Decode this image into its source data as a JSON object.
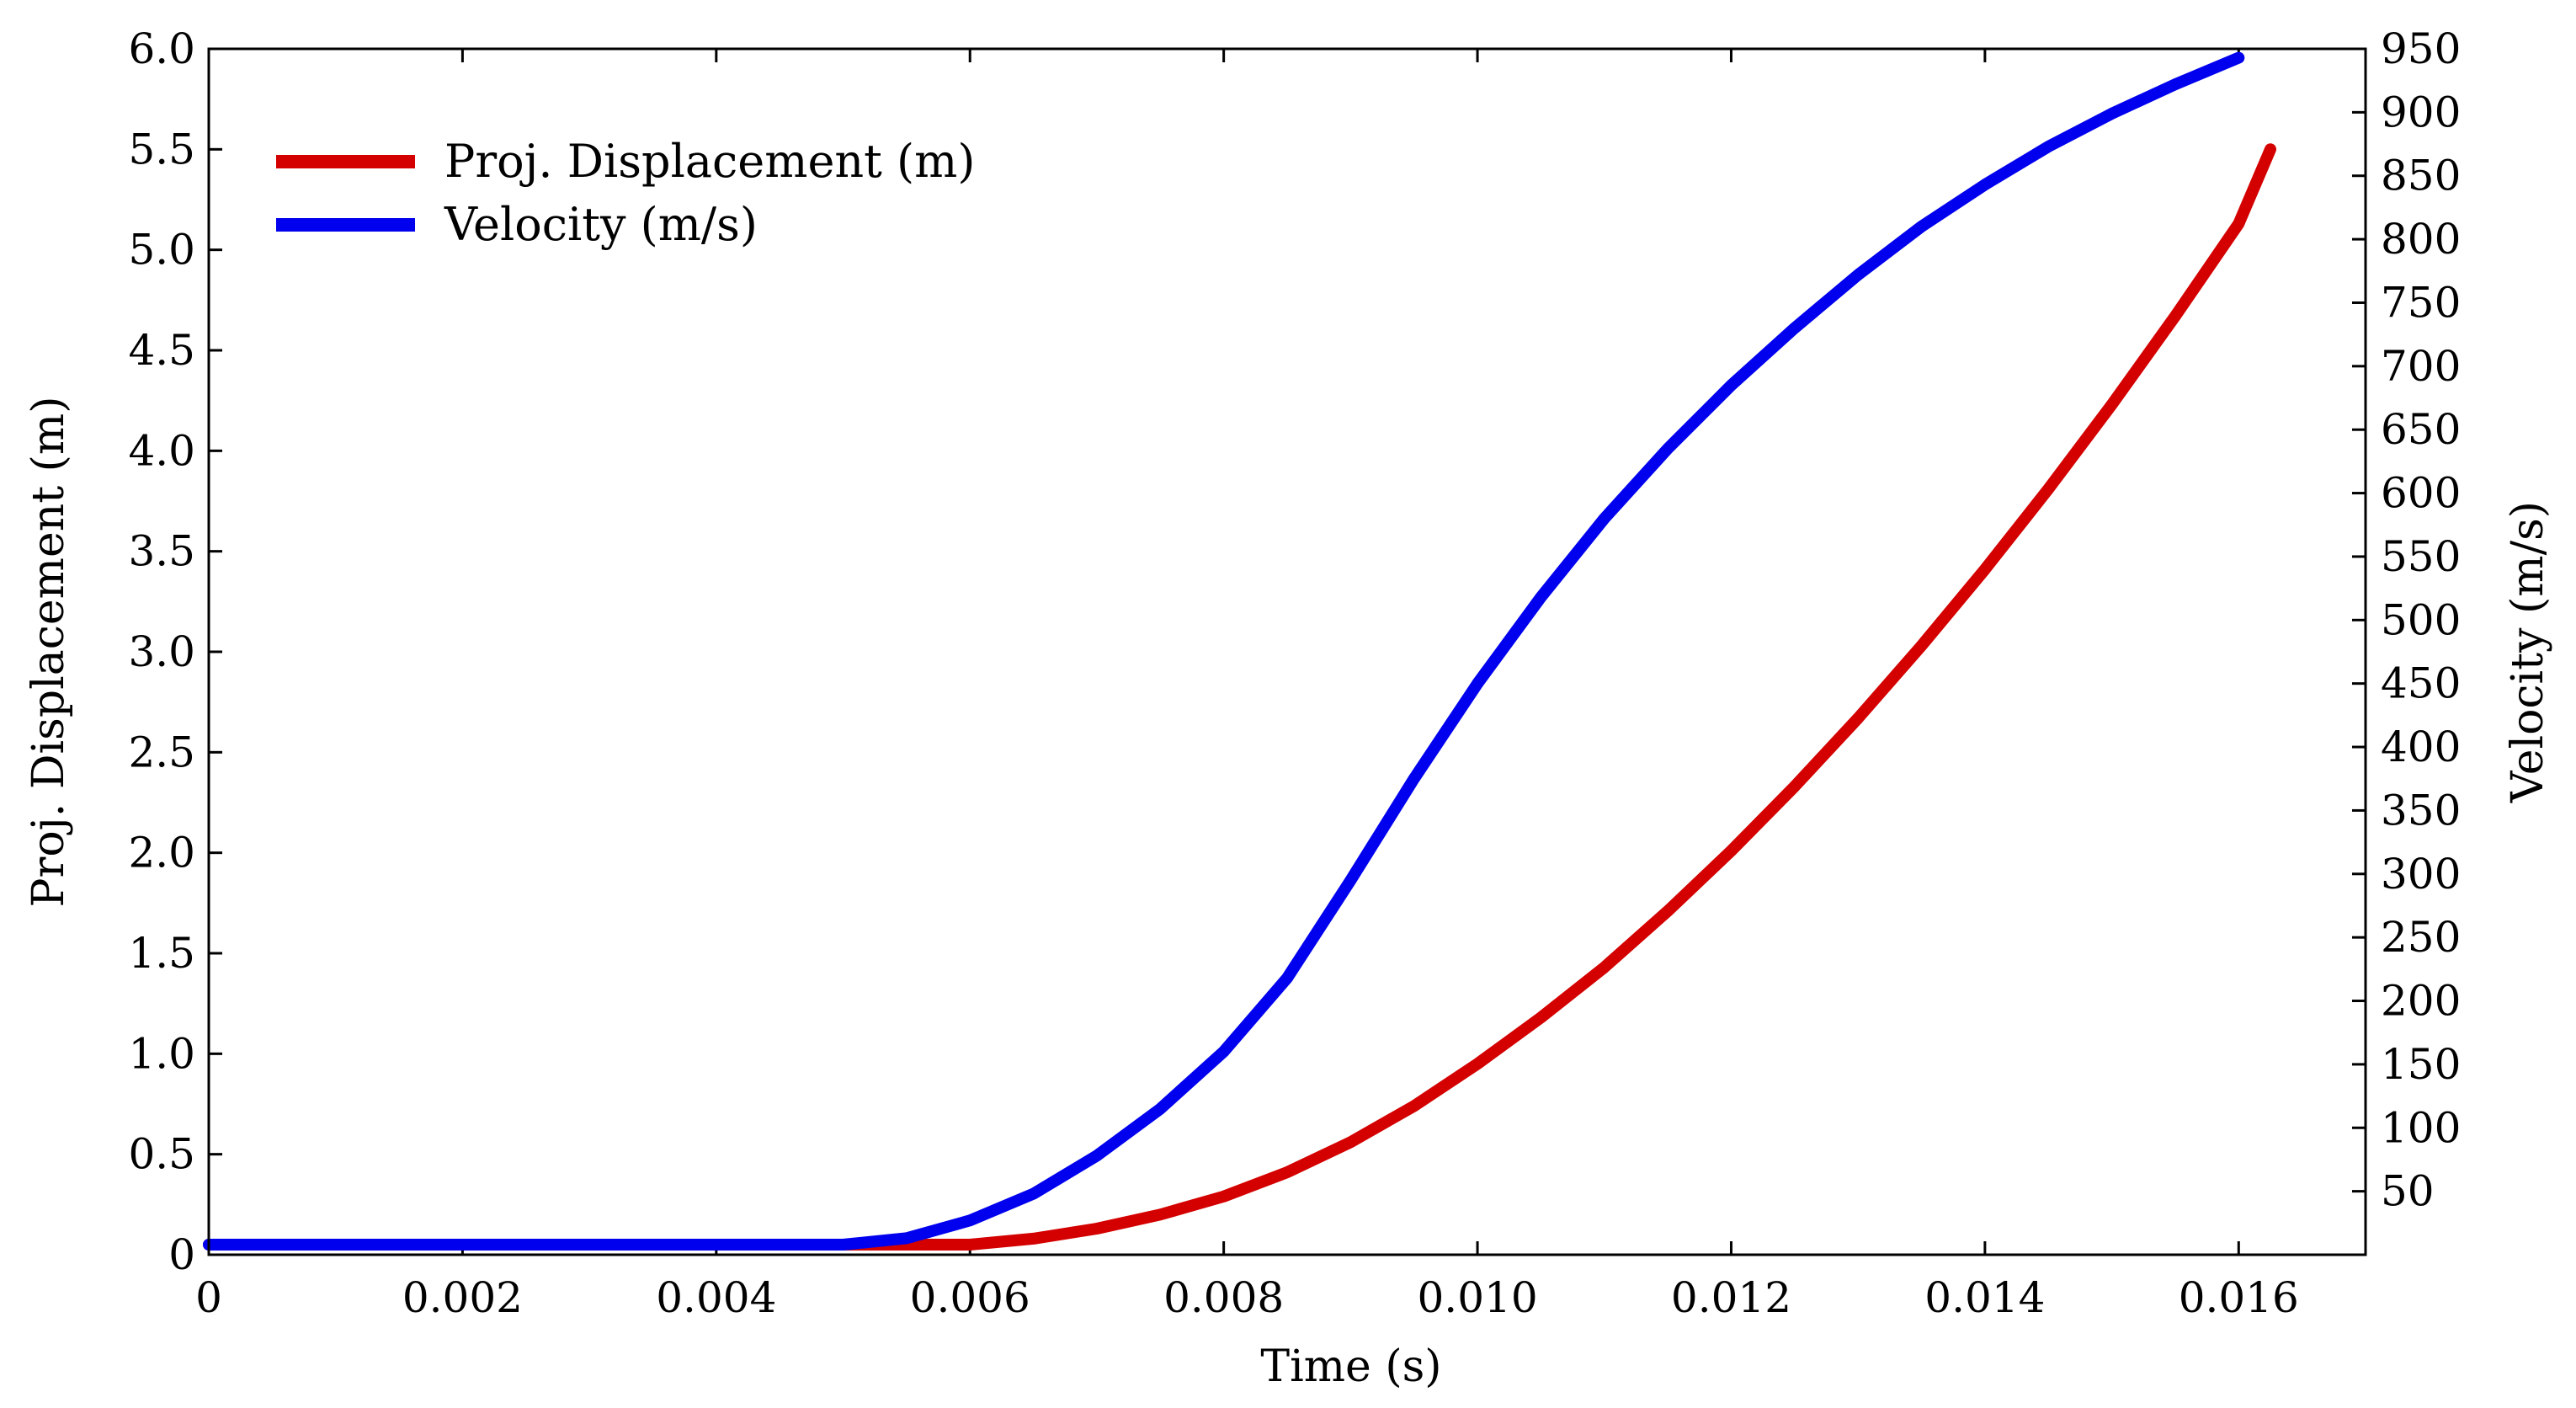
{
  "chart_data": {
    "type": "line",
    "title": "",
    "xlabel": "Time (s)",
    "ylabel_left": "Proj. Displacement (m)",
    "ylabel_right": "Velocity (m/s)",
    "xlim": [
      0,
      0.017
    ],
    "ylim_left": [
      0,
      6.0
    ],
    "ylim_right": [
      0,
      950
    ],
    "x_ticks": [
      {
        "value": 0,
        "label": "0"
      },
      {
        "value": 0.002,
        "label": "0.002"
      },
      {
        "value": 0.004,
        "label": "0.004"
      },
      {
        "value": 0.006,
        "label": "0.006"
      },
      {
        "value": 0.008,
        "label": "0.008"
      },
      {
        "value": 0.01,
        "label": "0.010"
      },
      {
        "value": 0.012,
        "label": "0.012"
      },
      {
        "value": 0.014,
        "label": "0.014"
      },
      {
        "value": 0.016,
        "label": "0.016"
      }
    ],
    "y_left_ticks": [
      {
        "value": 0,
        "label": "0"
      },
      {
        "value": 0.5,
        "label": "0.5"
      },
      {
        "value": 1.0,
        "label": "1.0"
      },
      {
        "value": 1.5,
        "label": "1.5"
      },
      {
        "value": 2.0,
        "label": "2.0"
      },
      {
        "value": 2.5,
        "label": "2.5"
      },
      {
        "value": 3.0,
        "label": "3.0"
      },
      {
        "value": 3.5,
        "label": "3.5"
      },
      {
        "value": 4.0,
        "label": "4.0"
      },
      {
        "value": 4.5,
        "label": "4.5"
      },
      {
        "value": 5.0,
        "label": "5.0"
      },
      {
        "value": 5.5,
        "label": "5.5"
      },
      {
        "value": 6.0,
        "label": "6.0"
      }
    ],
    "y_right_ticks": [
      {
        "value": 50,
        "label": "50"
      },
      {
        "value": 100,
        "label": "100"
      },
      {
        "value": 150,
        "label": "150"
      },
      {
        "value": 200,
        "label": "200"
      },
      {
        "value": 250,
        "label": "250"
      },
      {
        "value": 300,
        "label": "300"
      },
      {
        "value": 350,
        "label": "350"
      },
      {
        "value": 400,
        "label": "400"
      },
      {
        "value": 450,
        "label": "450"
      },
      {
        "value": 500,
        "label": "500"
      },
      {
        "value": 550,
        "label": "550"
      },
      {
        "value": 600,
        "label": "600"
      },
      {
        "value": 650,
        "label": "650"
      },
      {
        "value": 700,
        "label": "700"
      },
      {
        "value": 750,
        "label": "750"
      },
      {
        "value": 800,
        "label": "800"
      },
      {
        "value": 850,
        "label": "850"
      },
      {
        "value": 900,
        "label": "900"
      },
      {
        "value": 950,
        "label": "950"
      }
    ],
    "legend_position": "top-left",
    "series": [
      {
        "name": "Proj. Displacement (m)",
        "axis": "left",
        "color": "#d40000",
        "x": [
          0,
          0.001,
          0.002,
          0.003,
          0.004,
          0.0045,
          0.005,
          0.0055,
          0.006,
          0.0065,
          0.007,
          0.0075,
          0.008,
          0.0085,
          0.009,
          0.0095,
          0.01,
          0.0105,
          0.011,
          0.0115,
          0.012,
          0.0125,
          0.013,
          0.0135,
          0.014,
          0.0145,
          0.015,
          0.0155,
          0.016,
          0.01625
        ],
        "values": [
          0,
          0,
          0,
          0,
          0,
          0.002,
          0.01,
          0.025,
          0.05,
          0.08,
          0.13,
          0.2,
          0.29,
          0.41,
          0.56,
          0.74,
          0.95,
          1.18,
          1.43,
          1.71,
          2.01,
          2.33,
          2.67,
          3.03,
          3.41,
          3.81,
          4.23,
          4.67,
          5.13,
          5.5
        ]
      },
      {
        "name": "Velocity (m/s)",
        "axis": "right",
        "color": "#0000ee",
        "x": [
          0,
          0.001,
          0.002,
          0.003,
          0.004,
          0.0045,
          0.005,
          0.0055,
          0.006,
          0.0065,
          0.007,
          0.0075,
          0.008,
          0.0085,
          0.009,
          0.0095,
          0.01,
          0.0105,
          0.011,
          0.0115,
          0.012,
          0.0125,
          0.013,
          0.0135,
          0.014,
          0.0145,
          0.015,
          0.0155,
          0.016
        ],
        "values": [
          0,
          0,
          0,
          0,
          0,
          1,
          5,
          13,
          27,
          48,
          78,
          115,
          160,
          218,
          295,
          375,
          450,
          518,
          580,
          635,
          685,
          730,
          772,
          810,
          843,
          873,
          899,
          922,
          943
        ]
      }
    ]
  }
}
